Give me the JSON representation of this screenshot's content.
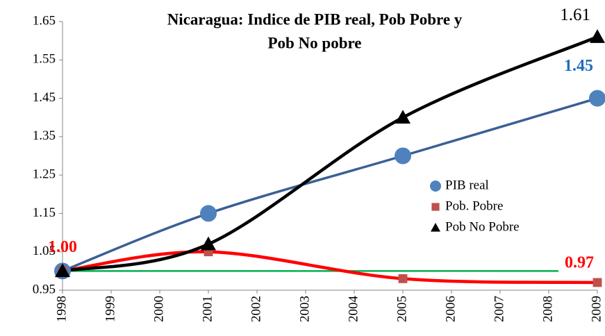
{
  "chart_data": {
    "type": "line",
    "title": [
      "Nicaragua: Indice de PIB real, Pob Pobre y",
      "Pob No pobre"
    ],
    "x": [
      1998,
      2001,
      2005,
      2009
    ],
    "xlim": [
      1998,
      2009
    ],
    "xticks": [
      1998,
      1999,
      2000,
      2001,
      2002,
      2003,
      2004,
      2005,
      2006,
      2007,
      2008,
      2009
    ],
    "ylim": [
      0.95,
      1.65
    ],
    "yticks": [
      0.95,
      1.05,
      1.15,
      1.25,
      1.35,
      1.45,
      1.55,
      1.65
    ],
    "grid": false,
    "legend": "right",
    "series": [
      {
        "name": "PIB real",
        "color": "#4f81bd",
        "line_color": "#3a5f94",
        "label_color": "#1f6fbf",
        "marker": "circle",
        "values": [
          1.0,
          1.15,
          1.3,
          1.45
        ],
        "value_labels": [
          null,
          null,
          null,
          "1.45"
        ]
      },
      {
        "name": "Pob. Pobre",
        "color": "#c0504d",
        "line_color": "#ff0000",
        "label_color": "#ff0000",
        "marker": "square",
        "values": [
          1.0,
          1.05,
          0.98,
          0.97
        ],
        "value_labels": [
          "1.00",
          null,
          null,
          "0.97"
        ]
      },
      {
        "name": "Pob No Pobre",
        "color": "#000000",
        "line_color": "#000000",
        "label_color": "#000000",
        "marker": "triangle",
        "values": [
          1.0,
          1.07,
          1.4,
          1.61
        ],
        "value_labels": [
          null,
          null,
          null,
          "1.61"
        ]
      }
    ],
    "reference_line": {
      "y": 1.0,
      "x": [
        1998,
        2008.2
      ],
      "color": "#00b050"
    }
  }
}
